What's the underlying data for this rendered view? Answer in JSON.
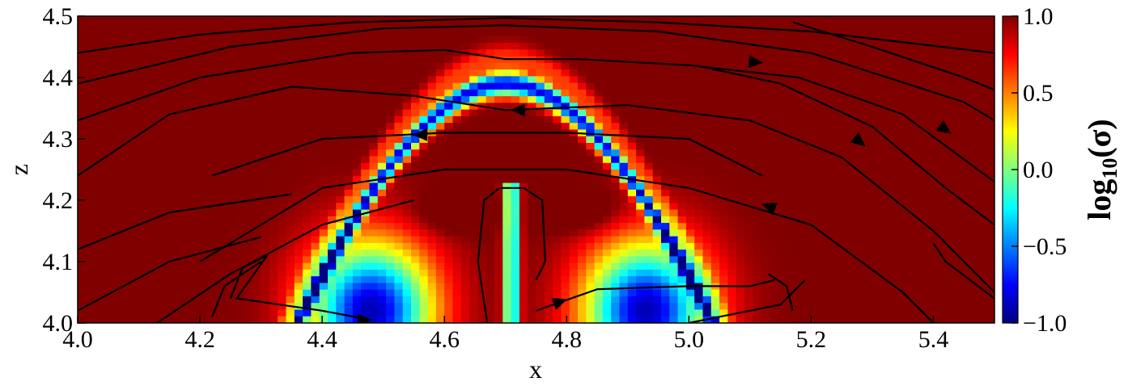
{
  "chart_data": {
    "type": "heatmap",
    "title": "",
    "xlabel": "x",
    "ylabel": "z",
    "xlim": [
      4.0,
      5.5
    ],
    "ylim": [
      4.0,
      4.5
    ],
    "x_ticks": [
      "4.0",
      "4.2",
      "4.4",
      "4.6",
      "4.8",
      "5.0",
      "5.2",
      "5.4"
    ],
    "y_ticks": [
      "4.0",
      "4.1",
      "4.2",
      "4.3",
      "4.4",
      "4.5"
    ],
    "colormap": "jet",
    "colorbar": {
      "label_base": "log",
      "label_sub": "10",
      "label_arg": "(σ)",
      "range": [
        -1.0,
        1.0
      ],
      "ticks": [
        "1.0",
        "0.5",
        "0.0",
        "−0.5",
        "−1.0"
      ]
    },
    "streamlines": true,
    "field": "log10(sigma) over x in [4.0,5.5], z in [4.0,4.5]: high (~1) outside, a narrow low arc (~-0.5 to -1) from (4.0,4.08) through (4.7,4.39) to (5.5,4.0), two low lobes (~-0.8) near x=4.48 and x=4.93 at z~4.0-4.1, a thin low vertical channel at x~4.71"
  },
  "colors": {
    "jet": [
      "#00007f",
      "#0000ff",
      "#007fff",
      "#00ffff",
      "#7fff7f",
      "#ffff00",
      "#ff7f00",
      "#ff0000",
      "#7f0000"
    ]
  }
}
